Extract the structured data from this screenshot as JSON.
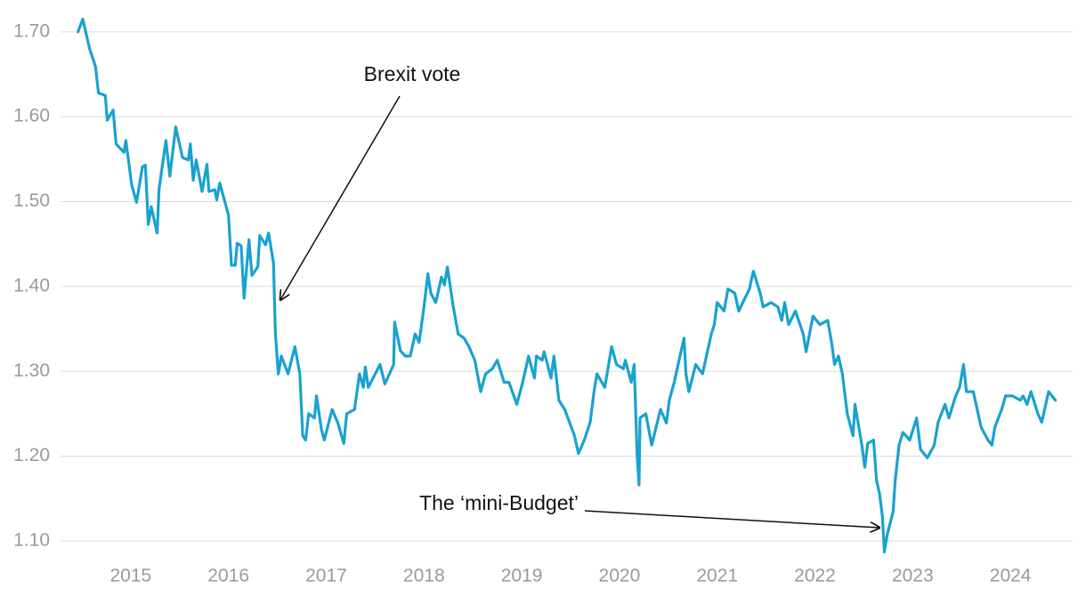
{
  "chart_data": {
    "type": "line",
    "color": "#19a2cf",
    "grid": true,
    "xlim": [
      2014.2,
      2024.7
    ],
    "ylim": [
      1.08,
      1.725
    ],
    "xticks": [
      2015,
      2016,
      2017,
      2018,
      2019,
      2020,
      2021,
      2022,
      2023,
      2024
    ],
    "yticks": [
      {
        "value": 1.1,
        "label": "1.10"
      },
      {
        "value": 1.2,
        "label": "1.20"
      },
      {
        "value": 1.3,
        "label": "1.30"
      },
      {
        "value": 1.4,
        "label": "1.40"
      },
      {
        "value": 1.5,
        "label": "1.50"
      },
      {
        "value": 1.6,
        "label": "1.60"
      },
      {
        "value": 1.7,
        "label": "1.70"
      }
    ],
    "annotations": [
      "Brexit vote",
      "The ‘mini-Budget’"
    ],
    "x": [
      2014.46,
      2014.51,
      2014.58,
      2014.64,
      2014.67,
      2014.74,
      2014.76,
      2014.82,
      2014.85,
      2014.93,
      2014.95,
      2015.01,
      2015.06,
      2015.12,
      2015.15,
      2015.18,
      2015.21,
      2015.27,
      2015.29,
      2015.36,
      2015.4,
      2015.46,
      2015.53,
      2015.59,
      2015.61,
      2015.64,
      2015.67,
      2015.73,
      2015.78,
      2015.8,
      2015.86,
      2015.88,
      2015.91,
      2016.0,
      2016.03,
      2016.07,
      2016.09,
      2016.13,
      2016.16,
      2016.21,
      2016.24,
      2016.3,
      2016.32,
      2016.38,
      2016.41,
      2016.46,
      2016.48,
      2016.51,
      2016.54,
      2016.61,
      2016.68,
      2016.73,
      2016.76,
      2016.79,
      2016.82,
      2016.88,
      2016.9,
      2016.95,
      2016.98,
      2017.06,
      2017.12,
      2017.18,
      2017.21,
      2017.29,
      2017.34,
      2017.38,
      2017.4,
      2017.43,
      2017.51,
      2017.55,
      2017.6,
      2017.69,
      2017.7,
      2017.76,
      2017.81,
      2017.86,
      2017.91,
      2017.95,
      2018.0,
      2018.04,
      2018.07,
      2018.12,
      2018.18,
      2018.21,
      2018.24,
      2018.3,
      2018.35,
      2018.41,
      2018.46,
      2018.52,
      2018.58,
      2018.63,
      2018.7,
      2018.75,
      2018.82,
      2018.87,
      2018.95,
      2019.01,
      2019.07,
      2019.13,
      2019.15,
      2019.21,
      2019.23,
      2019.3,
      2019.33,
      2019.38,
      2019.44,
      2019.54,
      2019.58,
      2019.64,
      2019.7,
      2019.74,
      2019.77,
      2019.85,
      2019.92,
      2019.97,
      2020.04,
      2020.06,
      2020.12,
      2020.15,
      2020.18,
      2020.2,
      2020.21,
      2020.27,
      2020.33,
      2020.42,
      2020.48,
      2020.51,
      2020.56,
      2020.6,
      2020.66,
      2020.68,
      2020.71,
      2020.78,
      2020.85,
      2020.94,
      2020.97,
      2021.0,
      2021.07,
      2021.11,
      2021.18,
      2021.22,
      2021.33,
      2021.37,
      2021.44,
      2021.47,
      2021.55,
      2021.62,
      2021.66,
      2021.69,
      2021.73,
      2021.8,
      2021.88,
      2021.91,
      2021.98,
      2022.05,
      2022.13,
      2022.17,
      2022.2,
      2022.24,
      2022.28,
      2022.33,
      2022.39,
      2022.41,
      2022.48,
      2022.51,
      2022.54,
      2022.6,
      2022.63,
      2022.66,
      2022.69,
      2022.71,
      2022.74,
      2022.8,
      2022.82,
      2022.86,
      2022.9,
      2022.97,
      2023.04,
      2023.08,
      2023.15,
      2023.22,
      2023.26,
      2023.33,
      2023.37,
      2023.44,
      2023.48,
      2023.52,
      2023.55,
      2023.62,
      2023.7,
      2023.77,
      2023.81,
      2023.84,
      2023.91,
      2023.95,
      2024.02,
      2024.1,
      2024.13,
      2024.17,
      2024.21,
      2024.28,
      2024.32,
      2024.39,
      2024.46
    ],
    "values": [
      1.7,
      1.715,
      1.68,
      1.659,
      1.628,
      1.625,
      1.596,
      1.608,
      1.568,
      1.558,
      1.572,
      1.52,
      1.499,
      1.541,
      1.543,
      1.473,
      1.494,
      1.463,
      1.515,
      1.572,
      1.53,
      1.588,
      1.552,
      1.549,
      1.568,
      1.525,
      1.549,
      1.512,
      1.544,
      1.512,
      1.514,
      1.502,
      1.522,
      1.484,
      1.425,
      1.425,
      1.451,
      1.448,
      1.386,
      1.455,
      1.413,
      1.423,
      1.46,
      1.449,
      1.463,
      1.428,
      1.344,
      1.297,
      1.318,
      1.297,
      1.329,
      1.297,
      1.224,
      1.219,
      1.25,
      1.245,
      1.271,
      1.232,
      1.219,
      1.255,
      1.239,
      1.215,
      1.25,
      1.255,
      1.297,
      1.281,
      1.305,
      1.281,
      1.299,
      1.308,
      1.285,
      1.308,
      1.358,
      1.324,
      1.318,
      1.318,
      1.344,
      1.334,
      1.376,
      1.415,
      1.392,
      1.381,
      1.411,
      1.402,
      1.423,
      1.376,
      1.344,
      1.339,
      1.329,
      1.313,
      1.276,
      1.297,
      1.303,
      1.313,
      1.287,
      1.287,
      1.261,
      1.287,
      1.318,
      1.292,
      1.318,
      1.313,
      1.323,
      1.292,
      1.318,
      1.266,
      1.255,
      1.224,
      1.203,
      1.219,
      1.24,
      1.276,
      1.297,
      1.281,
      1.329,
      1.308,
      1.303,
      1.313,
      1.287,
      1.308,
      1.203,
      1.166,
      1.245,
      1.25,
      1.213,
      1.255,
      1.239,
      1.266,
      1.287,
      1.308,
      1.339,
      1.297,
      1.276,
      1.308,
      1.297,
      1.344,
      1.355,
      1.381,
      1.371,
      1.397,
      1.392,
      1.371,
      1.397,
      1.418,
      1.392,
      1.376,
      1.381,
      1.376,
      1.36,
      1.381,
      1.355,
      1.371,
      1.344,
      1.323,
      1.365,
      1.355,
      1.36,
      1.334,
      1.308,
      1.318,
      1.297,
      1.25,
      1.224,
      1.261,
      1.213,
      1.187,
      1.215,
      1.219,
      1.171,
      1.156,
      1.129,
      1.087,
      1.108,
      1.135,
      1.171,
      1.213,
      1.228,
      1.219,
      1.245,
      1.208,
      1.198,
      1.213,
      1.24,
      1.261,
      1.245,
      1.271,
      1.281,
      1.308,
      1.276,
      1.276,
      1.234,
      1.219,
      1.213,
      1.234,
      1.255,
      1.271,
      1.271,
      1.266,
      1.271,
      1.261,
      1.276,
      1.25,
      1.24,
      1.276,
      1.266
    ]
  }
}
